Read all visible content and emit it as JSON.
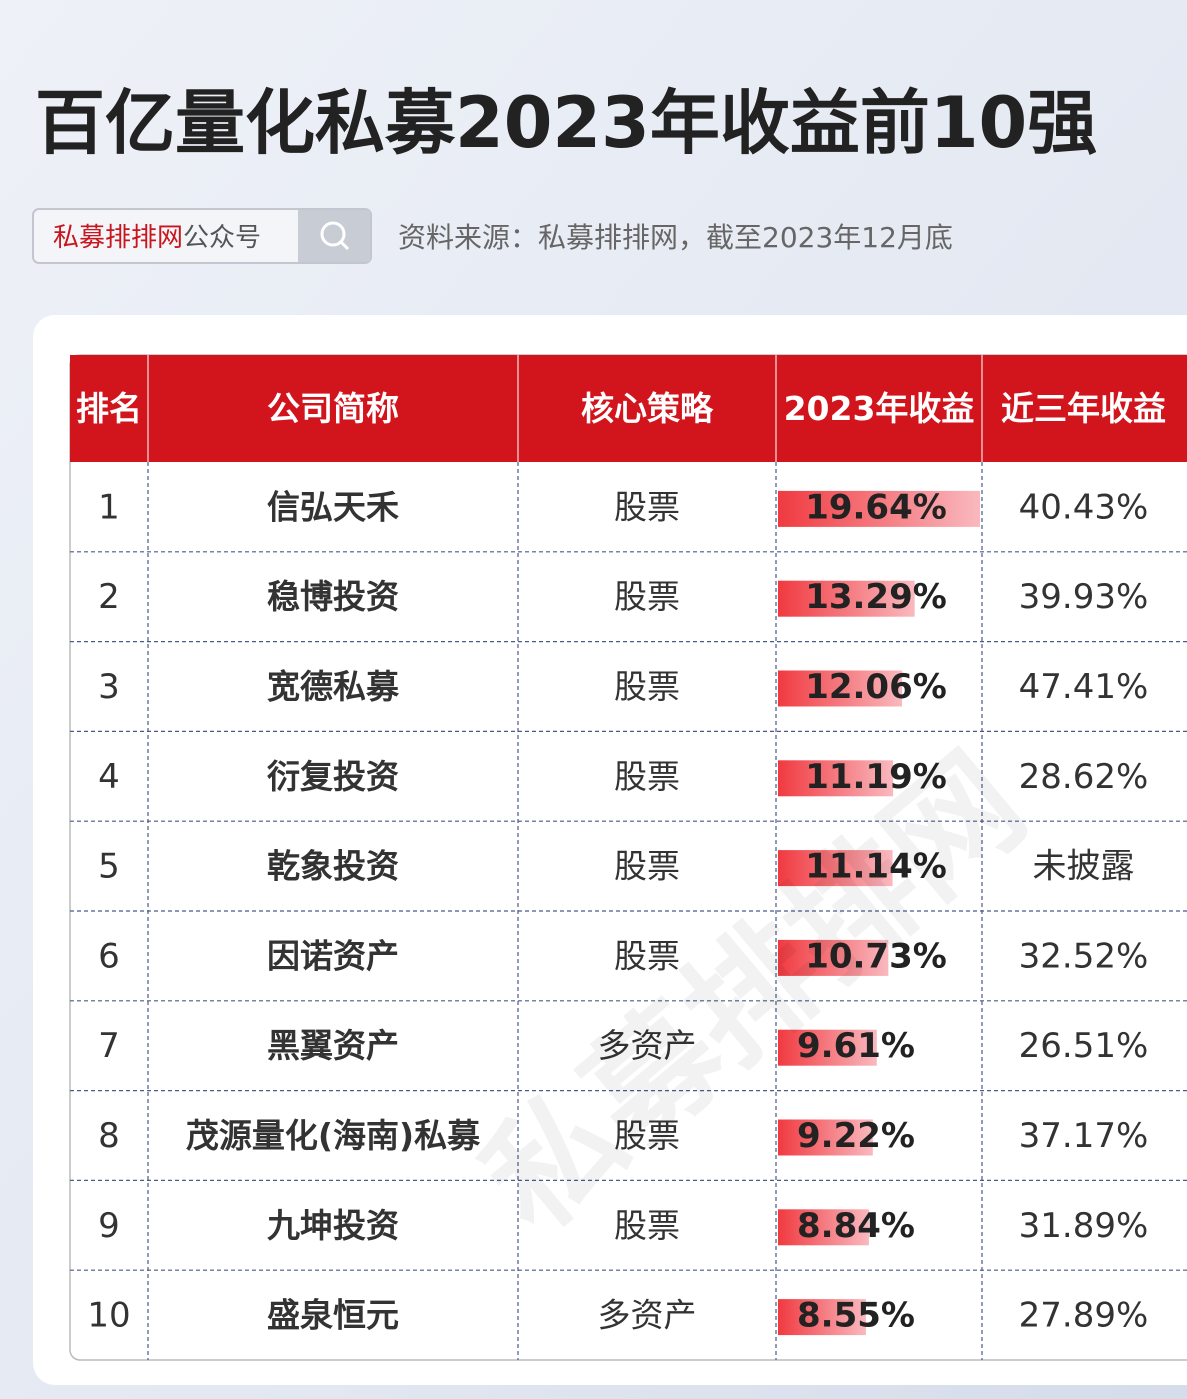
{
  "header": {
    "title": "百亿量化私募2023年收益前10强",
    "search_brand": "私募排排网",
    "search_suffix": "公众号",
    "source": "资料来源：私募排排网，截至2023年12月底"
  },
  "watermark": "私募排排网",
  "table": {
    "columns": [
      "排名",
      "公司简称",
      "核心策略",
      "2023年收益",
      "近三年收益"
    ],
    "rows": [
      [
        1,
        "信弘天禾",
        "股票",
        {
          "value": 19.64,
          "label": "19.64%"
        },
        "40.43%"
      ],
      [
        2,
        "稳博投资",
        "股票",
        {
          "value": 13.29,
          "label": "13.29%"
        },
        "39.93%"
      ],
      [
        3,
        "宽德私募",
        "股票",
        {
          "value": 12.06,
          "label": "12.06%"
        },
        "47.41%"
      ],
      [
        4,
        "衍复投资",
        "股票",
        {
          "value": 11.19,
          "label": "11.19%"
        },
        "28.62%"
      ],
      [
        5,
        "乾象投资",
        "股票",
        {
          "value": 11.14,
          "label": "11.14%"
        },
        "未披露"
      ],
      [
        6,
        "因诺资产",
        "股票",
        {
          "value": 10.73,
          "label": "10.73%"
        },
        "32.52%"
      ],
      [
        7,
        "黑翼资产",
        "多资产",
        {
          "value": 9.61,
          "label": "9.61%"
        },
        "26.51%"
      ],
      [
        8,
        "茂源量化(海南)私募",
        "股票",
        {
          "value": 9.22,
          "label": "9.22%"
        },
        "37.17%"
      ],
      [
        9,
        "九坤投资",
        "股票",
        {
          "value": 8.84,
          "label": "8.84%"
        },
        "31.89%"
      ],
      [
        10,
        "盛泉恒元",
        "多资产",
        {
          "value": 8.55,
          "label": "8.55%"
        },
        "27.89%"
      ]
    ]
  }
}
